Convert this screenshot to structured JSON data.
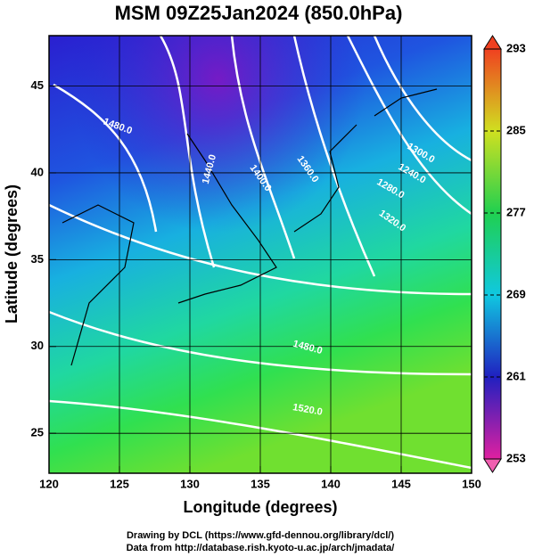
{
  "title": "MSM 09Z25Jan2024 (850.0hPa)",
  "x_axis": {
    "label": "Longitude (degrees)",
    "lim": [
      120,
      150
    ],
    "ticks": [
      120,
      125,
      130,
      135,
      140,
      145,
      150
    ]
  },
  "y_axis": {
    "label": "Latitude  (degrees)",
    "lim": [
      22.7,
      47.9
    ],
    "ticks": [
      25,
      30,
      35,
      40,
      45
    ]
  },
  "colorbar": {
    "lim": [
      253,
      293
    ],
    "ticks": [
      253,
      261,
      269,
      277,
      285,
      293
    ]
  },
  "contour_labels": [
    "1480.0",
    "1440.0",
    "1400.0",
    "1360.0",
    "1300.0",
    "1240.0",
    "1280.0",
    "1320.0",
    "1480.0",
    "1520.0"
  ],
  "footer": [
    "Drawing by DCL (https://www.gfd-dennou.org/library/dcl/)",
    "Data from http://database.rish.kyoto-u.ac.jp/arch/jmadata/"
  ]
}
